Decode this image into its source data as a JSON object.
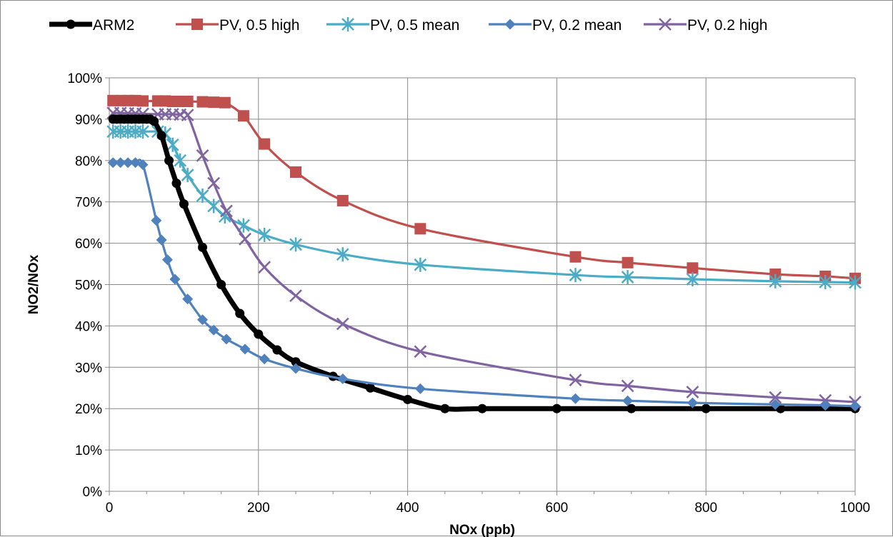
{
  "chart_data": {
    "type": "line",
    "title": "",
    "xlabel": "NOx (ppb)",
    "ylabel": "NO2/NOx",
    "xlim": [
      0,
      1000
    ],
    "ylim": [
      0,
      1
    ],
    "x_ticks": [
      0,
      200,
      400,
      600,
      800,
      1000
    ],
    "y_ticks": [
      0,
      0.1,
      0.2,
      0.3,
      0.4,
      0.5,
      0.6,
      0.7,
      0.8,
      0.9,
      1.0
    ],
    "y_tick_labels": [
      "0%",
      "10%",
      "20%",
      "30%",
      "40%",
      "50%",
      "60%",
      "70%",
      "80%",
      "90%",
      "100%"
    ],
    "x_tick_labels": [
      "0",
      "200",
      "400",
      "600",
      "800",
      "1000"
    ],
    "grid": true,
    "legend_position": "top",
    "series": [
      {
        "name": "ARM2",
        "color": "#000000",
        "marker": "circle",
        "x": [
          5,
          10,
          15,
          20,
          25,
          30,
          35,
          40,
          45,
          50,
          55,
          60,
          70,
          80,
          90,
          100,
          125,
          150,
          175,
          200,
          225,
          250,
          300,
          350,
          400,
          450,
          500,
          600,
          700,
          800,
          900,
          1000
        ],
        "y": [
          0.9,
          0.9,
          0.9,
          0.9,
          0.9,
          0.9,
          0.9,
          0.9,
          0.9,
          0.9,
          0.9,
          0.895,
          0.86,
          0.8,
          0.745,
          0.695,
          0.59,
          0.5,
          0.43,
          0.38,
          0.342,
          0.313,
          0.278,
          0.25,
          0.222,
          0.2,
          0.2,
          0.2,
          0.2,
          0.2,
          0.2,
          0.2
        ]
      },
      {
        "name": "PV, 0.5 high",
        "color": "#C0504D",
        "marker": "square",
        "x": [
          5,
          15,
          25,
          35,
          45,
          65,
          75,
          85,
          95,
          105,
          125,
          140,
          155,
          180,
          208,
          250,
          313,
          417,
          625,
          695,
          782,
          893,
          960,
          1000
        ],
        "y": [
          0.945,
          0.945,
          0.945,
          0.945,
          0.944,
          0.944,
          0.944,
          0.943,
          0.943,
          0.943,
          0.942,
          0.941,
          0.94,
          0.908,
          0.84,
          0.772,
          0.703,
          0.635,
          0.567,
          0.553,
          0.54,
          0.525,
          0.52,
          0.515
        ]
      },
      {
        "name": "PV, 0.5 mean",
        "color": "#4BACC6",
        "marker": "star",
        "x": [
          5,
          15,
          25,
          35,
          45,
          65,
          75,
          85,
          95,
          105,
          125,
          140,
          155,
          180,
          208,
          250,
          313,
          417,
          625,
          695,
          782,
          893,
          960,
          1000
        ],
        "y": [
          0.87,
          0.87,
          0.87,
          0.87,
          0.87,
          0.87,
          0.865,
          0.838,
          0.8,
          0.765,
          0.715,
          0.69,
          0.665,
          0.643,
          0.62,
          0.597,
          0.573,
          0.548,
          0.523,
          0.518,
          0.513,
          0.508,
          0.506,
          0.505
        ]
      },
      {
        "name": "PV, 0.2 mean",
        "color": "#4F81BD",
        "marker": "diamond",
        "x": [
          5,
          15,
          25,
          35,
          45,
          63,
          70,
          78,
          88,
          105,
          125,
          140,
          157,
          182,
          208,
          250,
          313,
          417,
          625,
          695,
          782,
          893,
          960,
          1000
        ],
        "y": [
          0.795,
          0.795,
          0.795,
          0.795,
          0.79,
          0.655,
          0.608,
          0.56,
          0.513,
          0.465,
          0.415,
          0.39,
          0.368,
          0.344,
          0.32,
          0.297,
          0.272,
          0.248,
          0.224,
          0.219,
          0.214,
          0.21,
          0.208,
          0.206
        ]
      },
      {
        "name": "PV, 0.2 high",
        "color": "#8064A2",
        "marker": "x",
        "x": [
          5,
          15,
          25,
          35,
          45,
          65,
          75,
          85,
          95,
          105,
          125,
          140,
          157,
          182,
          208,
          250,
          313,
          417,
          625,
          695,
          782,
          893,
          960,
          1000
        ],
        "y": [
          0.915,
          0.915,
          0.914,
          0.914,
          0.913,
          0.912,
          0.912,
          0.912,
          0.911,
          0.91,
          0.812,
          0.745,
          0.678,
          0.61,
          0.542,
          0.473,
          0.405,
          0.338,
          0.269,
          0.255,
          0.24,
          0.227,
          0.22,
          0.216
        ]
      }
    ]
  }
}
